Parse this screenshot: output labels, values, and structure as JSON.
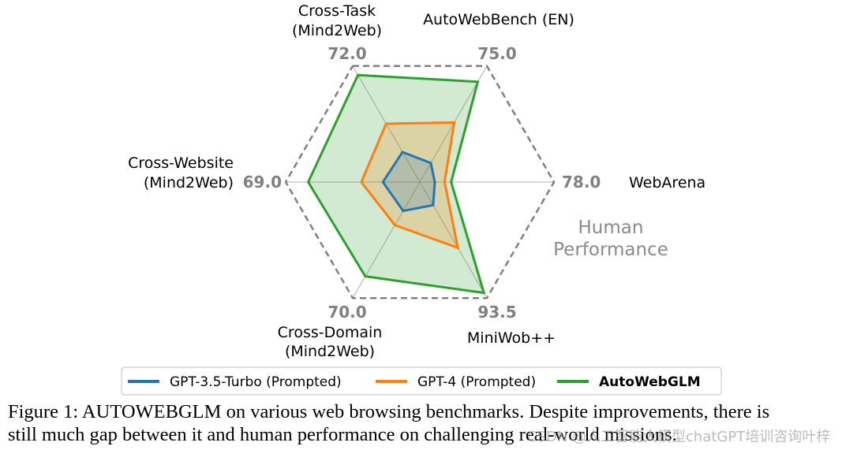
{
  "chart_data": {
    "type": "radar",
    "axes": [
      {
        "name_lines": [
          "Cross-Task",
          "(Mind2Web)"
        ],
        "max_label": "72.0",
        "max": 72.0
      },
      {
        "name_lines": [
          "AutoWebBench (EN)"
        ],
        "max_label": "75.0",
        "max": 75.0
      },
      {
        "name_lines": [
          "WebArena"
        ],
        "max_label": "78.0",
        "max": 78.0
      },
      {
        "name_lines": [
          "MiniWob++"
        ],
        "max_label": "93.5",
        "max": 93.5
      },
      {
        "name_lines": [
          "Cross-Domain",
          "(Mind2Web)"
        ],
        "max_label": "70.0",
        "max": 70.0
      },
      {
        "name_lines": [
          "Cross-Website",
          "(Mind2Web)"
        ],
        "max_label": "69.0",
        "max": 69.0
      }
    ],
    "human_performance_label_lines": [
      "Human",
      "Performance"
    ],
    "series": [
      {
        "name": "AutoWebGLM",
        "color": "#2ca02c",
        "bold": true,
        "fill": true,
        "values": [
          66.4,
          64.8,
          18.2,
          89.3,
          56.9,
          57.4
        ]
      },
      {
        "name": "GPT-4 (Prompted)",
        "color": "#ff7f0e",
        "bold": false,
        "fill": true,
        "values": [
          36.2,
          38.5,
          14.4,
          53.0,
          26.0,
          30.1
        ]
      },
      {
        "name": "GPT-3.5-Turbo (Prompted)",
        "color": "#1f77b4",
        "bold": false,
        "fill": true,
        "values": [
          18.6,
          12.3,
          8.7,
          18.6,
          17.4,
          19.0
        ]
      }
    ],
    "legend_order": [
      "GPT-3.5-Turbo (Prompted)",
      "GPT-4 (Prompted)",
      "AutoWebGLM"
    ],
    "grid": true
  },
  "caption": {
    "prefix": "Figure 1: ",
    "name_parts": [
      "A",
      "UTO",
      "W",
      "EB",
      "GLM"
    ],
    "line1_rest": " on various web browsing benchmarks. Despite improvements, there is",
    "line2": "still much gap between it and human performance on challenging real-world missions."
  },
  "watermark": "CSDN @人工智能大模型chatGPT培训咨询叶梓"
}
